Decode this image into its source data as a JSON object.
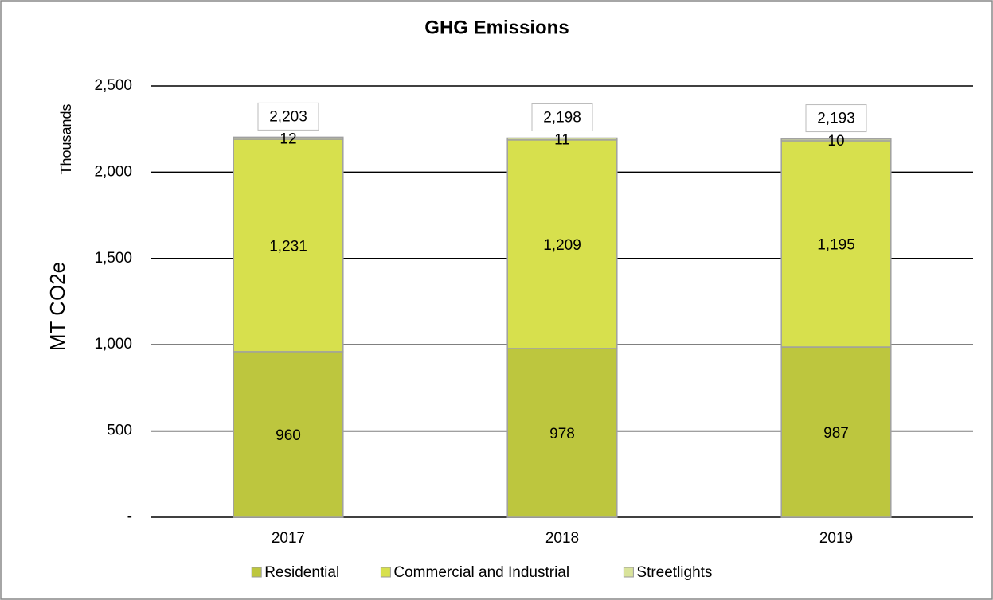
{
  "chart_data": {
    "type": "stacked_bar",
    "title": "GHG Emissions",
    "y_label": "MT CO2e",
    "y_unit_label": "Thousands",
    "categories": [
      "2017",
      "2018",
      "2019"
    ],
    "series": [
      {
        "name": "Residential",
        "color": "#bdc63e",
        "values": [
          960,
          978,
          987
        ],
        "value_labels": [
          "960",
          "978",
          "987"
        ]
      },
      {
        "name": "Commercial and Industrial",
        "color": "#d7e04d",
        "values": [
          1231,
          1209,
          1195
        ],
        "value_labels": [
          "1,231",
          "1,209",
          "1,195"
        ]
      },
      {
        "name": "Streetlights",
        "color": "#d9e39b",
        "values": [
          12,
          11,
          10
        ],
        "value_labels": [
          "12",
          "11",
          "10"
        ]
      }
    ],
    "totals": [
      2203,
      2198,
      2193
    ],
    "total_labels": [
      "2,203",
      "2,198",
      "2,193"
    ],
    "ylim": [
      0,
      2500
    ],
    "yticks": [
      {
        "value": 0,
        "label": "-"
      },
      500,
      {
        "value": 1000,
        "label": "1,000"
      },
      {
        "value": 1500,
        "label": "1,500"
      },
      {
        "value": 2000,
        "label": "2,000"
      },
      {
        "value": 2500,
        "label": "2,500"
      }
    ],
    "grid": true,
    "legend": "bottom"
  }
}
